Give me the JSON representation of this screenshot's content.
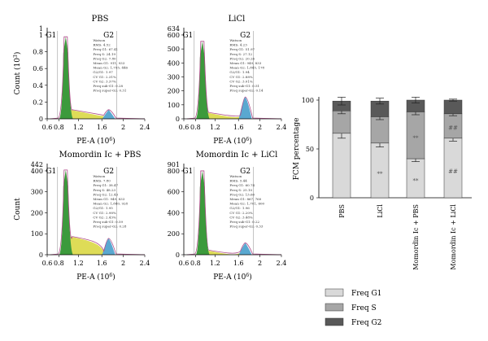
{
  "colors": {
    "g1_fill": "#3c9a3c",
    "s_fill": "#d8d63a",
    "g2_fill": "#5aa8d0",
    "outline": "#b04a8a",
    "freq_g1": "#d9d9d9",
    "freq_s": "#a6a6a6",
    "freq_g2": "#595959"
  },
  "histograms": [
    {
      "title": "PBS",
      "y_top": "1",
      "y_label": "Count (10",
      "y_label_exp": "3",
      "y_ticks": [
        "0",
        "0.2",
        "0.4",
        "0.6",
        "0.8",
        "1"
      ],
      "x_ticks": [
        "0.6",
        "0.8",
        "1.2",
        "1.6",
        "2",
        "2.4"
      ],
      "x_label": "PE-A (10",
      "x_label_exp": "6",
      "gate1": "G1",
      "gate2": "G2",
      "stats": [
        "Watson",
        "RMS: 4.52",
        "Freq G1: 67.41",
        "Freq S: 24.19",
        "Freq G2: 7.80",
        "Mean G1: 911, 933",
        "Mean G2: 1,795, 446",
        "G2/G1: 1.97",
        "CV G1: 2.31%",
        "CV G2: 3.37%",
        "Freq sub-G1: 0.28",
        "Freq super-G2: 0.31"
      ]
    },
    {
      "title": "LiCl",
      "y_top": "634",
      "y_label": "",
      "y_label_exp": "",
      "y_ticks": [
        "0",
        "100",
        "200",
        "300",
        "400",
        "500",
        "600"
      ],
      "x_ticks": [
        "0.6",
        "0.8",
        "1.2",
        "1.6",
        "2",
        "2.4"
      ],
      "x_label": "PE-A (10",
      "x_label_exp": "6",
      "gate1": "G1",
      "gate2": "G2",
      "stats": [
        "Watson",
        "RMS: 4.23",
        "Freq G1: 51.97",
        "Freq S: 27.12",
        "Freq G2: 20.26",
        "Mean G1: 949, 833",
        "Mean G2: 1,845, 178",
        "G2/G1: 1.94",
        "CV G1: 2.88%",
        "CV G2: 3.01%",
        "Freq sub-G1: 0.51",
        "Freq super-G2: 0.14"
      ]
    },
    {
      "title": "Momordin Ic + PBS",
      "y_top": "442",
      "y_label": "Count",
      "y_label_exp": "",
      "y_ticks": [
        "0",
        "100",
        "200",
        "300",
        "400"
      ],
      "x_ticks": [
        "0.6",
        "0.8",
        "1.2",
        "1.6",
        "2",
        "2.4"
      ],
      "x_label": "PE-A (10",
      "x_label_exp": "6",
      "gate1": "G1",
      "gate2": "G2",
      "stats": [
        "Watson",
        "RMS: 7.80",
        "Freq G1: 38.47",
        "Freq S: 48.23",
        "Freq G2: 12.43",
        "Mean G1: 949, 833",
        "Mean G2: 1,840, 928",
        "G2/G1: 1.95",
        "CV G1: 2.98%",
        "CV G2: 2.43%",
        "Freq sub-G1: 0.59",
        "Freq super-G2: 0.28"
      ]
    },
    {
      "title": "Momordin Ic + LiCl",
      "y_top": "901",
      "y_label": "",
      "y_label_exp": "",
      "y_ticks": [
        "0",
        "200",
        "400",
        "600",
        "800"
      ],
      "x_ticks": [
        "0.6",
        "0.8",
        "1.2",
        "1.6",
        "2",
        "2.4"
      ],
      "x_label": "PE-A (10",
      "x_label_exp": "6",
      "gate1": "G1",
      "gate2": "G2",
      "stats": [
        "Watson",
        "RMS: 5.44",
        "Freq G1: 60.74",
        "Freq S: 25.10",
        "Freq G2: 13.60",
        "Mean G1: 867, 760",
        "Mean G2: 1,701, 600",
        "G2/G1: 1.96",
        "CV G1: 2.20%",
        "CV G2: 3.48%",
        "Freq sub-G1: 0.22",
        "Freq super-G2: 0.33"
      ]
    }
  ],
  "chart_data": {
    "type": "bar",
    "stacked": true,
    "categories": [
      "PBS",
      "LiCl",
      "Momordin Ic + PBS",
      "Momordin Ic + LiCl"
    ],
    "series": [
      {
        "name": "Freq G1",
        "values": [
          66,
          56,
          40,
          61
        ],
        "errors": [
          5,
          4,
          3,
          3
        ],
        "marks": [
          "",
          "**",
          "**",
          "##"
        ]
      },
      {
        "name": "Freq S",
        "values": [
          23,
          27,
          48,
          25
        ],
        "errors": [
          3,
          3,
          3,
          2
        ],
        "marks": [
          "",
          "",
          "**",
          "##"
        ]
      },
      {
        "name": "Freq G2",
        "values": [
          10,
          16,
          12,
          14
        ],
        "errors": [
          4,
          3,
          3,
          1
        ],
        "marks": [
          "",
          "",
          "",
          ""
        ]
      }
    ],
    "title": "",
    "xlabel": "",
    "ylabel": "FCM percentage",
    "ylim": [
      0,
      100
    ],
    "yticks": [
      "0",
      "50",
      "100"
    ],
    "grid": false,
    "legend_position": "bottom"
  }
}
